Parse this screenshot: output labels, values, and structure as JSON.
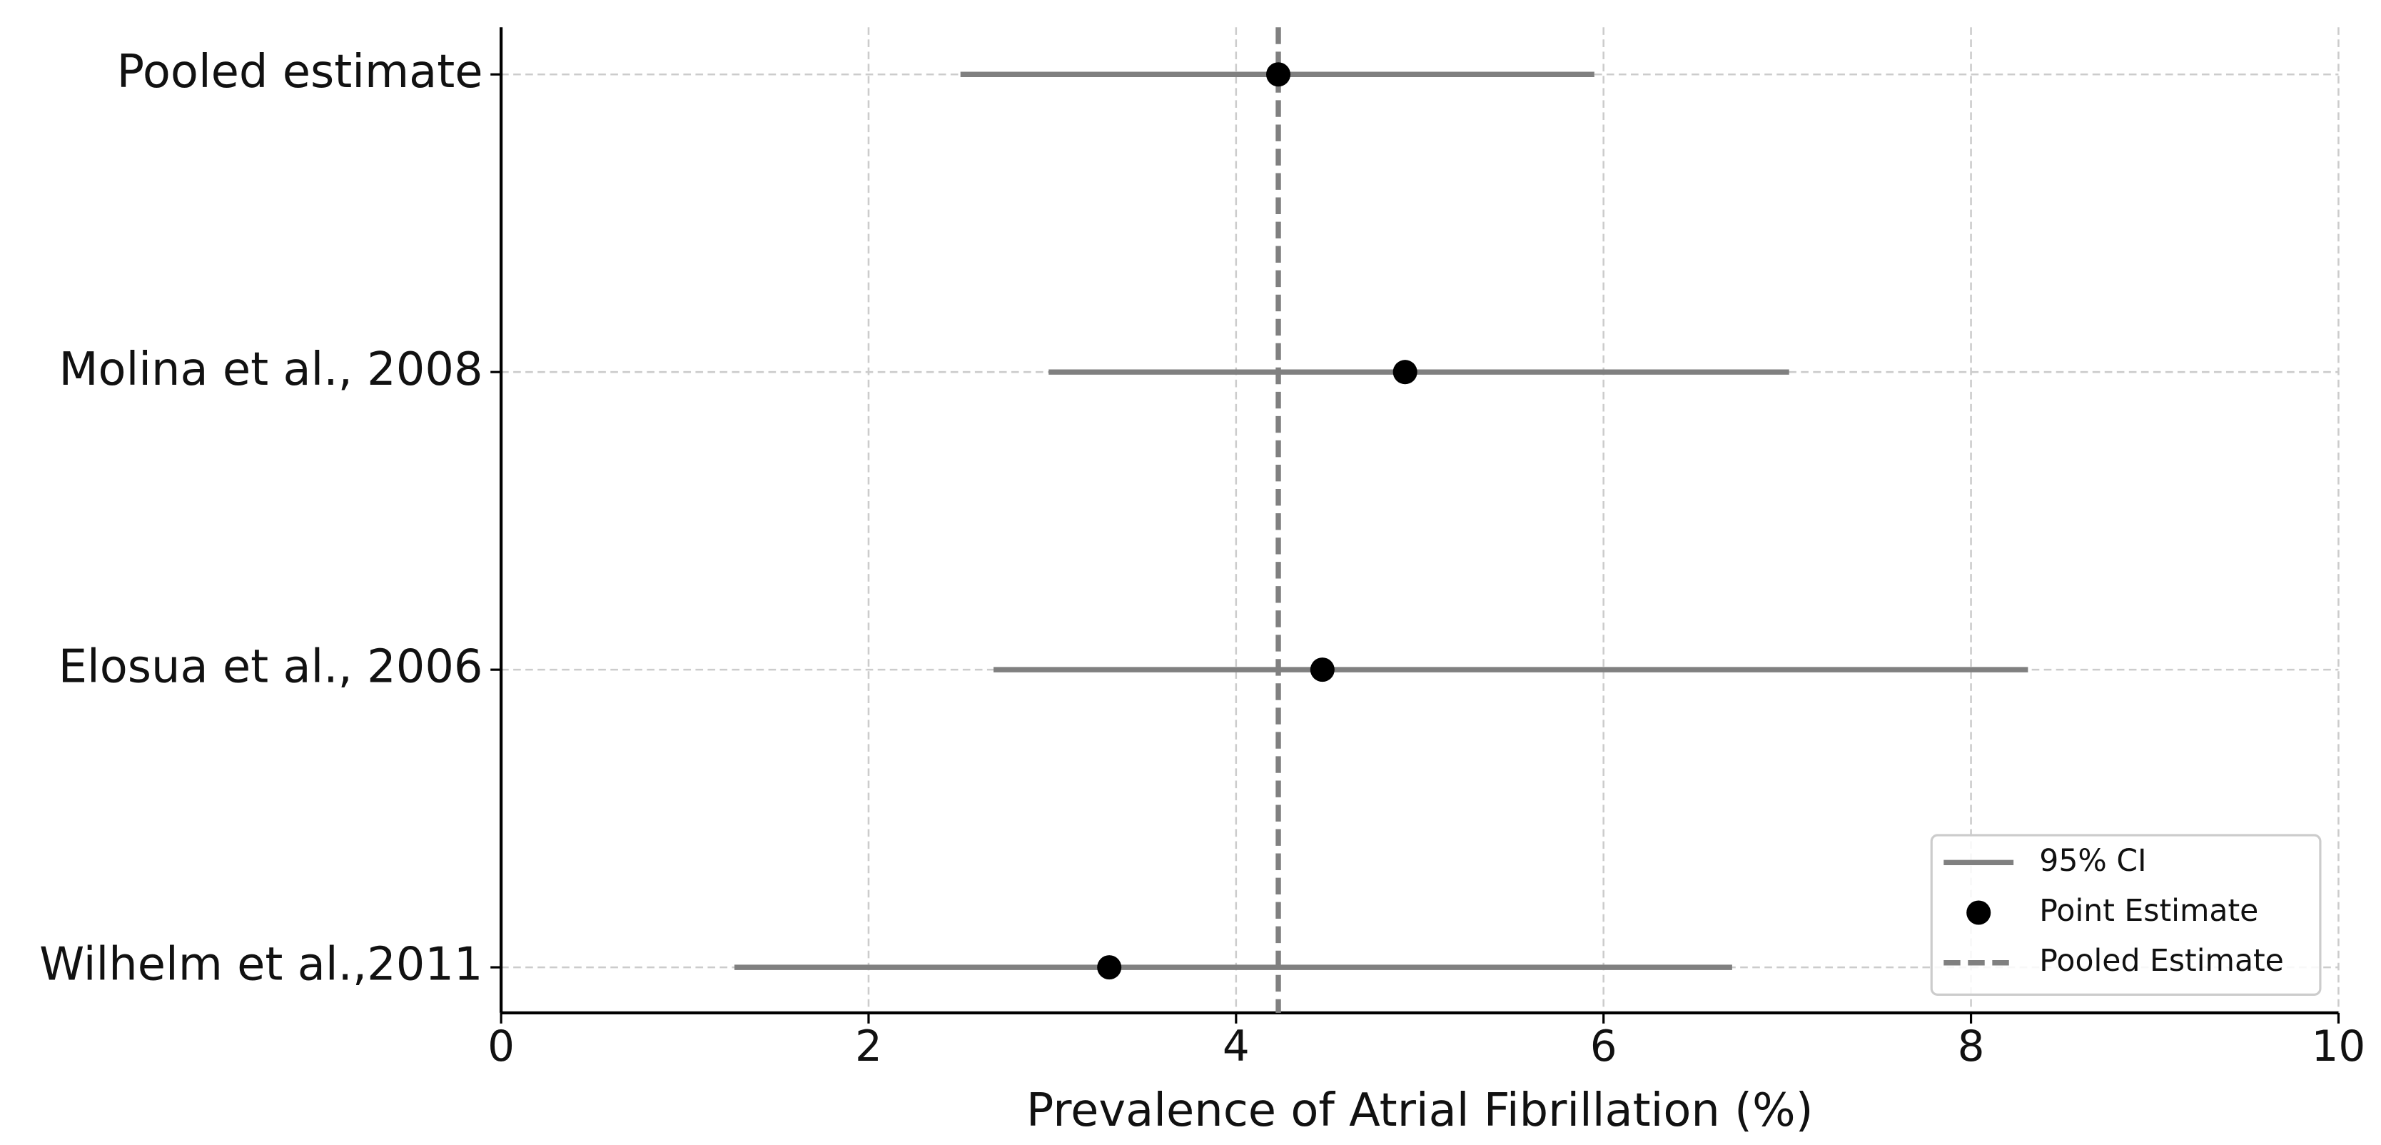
{
  "chart_data": {
    "type": "forest",
    "xlabel": "Prevalence of Atrial Fibrillation (%)",
    "categories": [
      "Pooled estimate",
      "Molina et al., 2008",
      "Elosua et al., 2006",
      "Wilhelm et al.,2011"
    ],
    "estimates": {
      "name": "Point Estimate",
      "color": "#000000",
      "values": [
        4.23,
        4.92,
        4.47,
        3.31
      ]
    },
    "ci": {
      "name": "95% CI",
      "color": "#808080",
      "lower": [
        2.5,
        2.98,
        2.68,
        1.27
      ],
      "upper": [
        5.95,
        7.01,
        8.31,
        6.7
      ]
    },
    "pooled": {
      "name": "Pooled Estimate",
      "color": "#808080",
      "value": 4.23
    },
    "xlim": [
      0,
      10
    ],
    "xticks": [
      0,
      2,
      4,
      6,
      8,
      10
    ],
    "grid": true,
    "legend": "lower right"
  }
}
